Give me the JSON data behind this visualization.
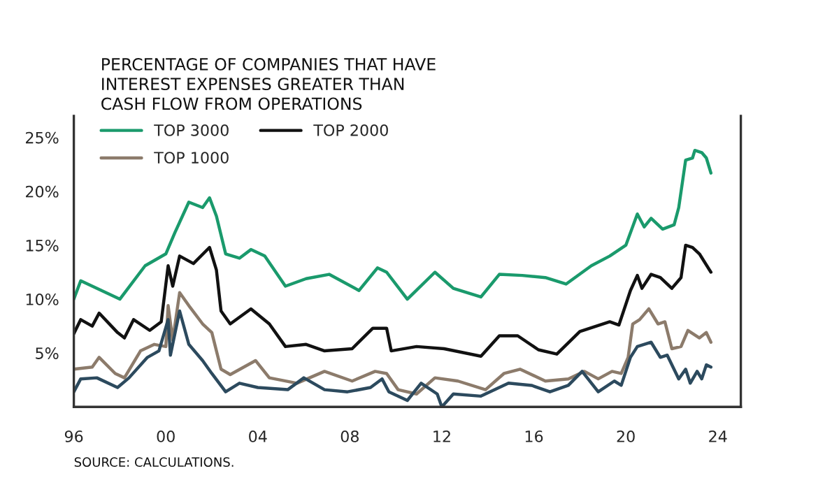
{
  "chart_data": {
    "type": "line",
    "title": "PERCENTAGE OF COMPANIES THAT HAVE\nINTEREST EXPENSES GREATER THAN\nCASH FLOW FROM OPERATIONS",
    "annotations": [
      "SOURCE: CALCULATIONS."
    ],
    "xlim": [
      1996,
      2025
    ],
    "xticks": [
      {
        "value": 1996,
        "label": "96"
      },
      {
        "value": 2000,
        "label": "00"
      },
      {
        "value": 2004,
        "label": "04"
      },
      {
        "value": 2008,
        "label": "08"
      },
      {
        "value": 2012,
        "label": "12"
      },
      {
        "value": 2016,
        "label": "16"
      },
      {
        "value": 2020,
        "label": "20"
      },
      {
        "value": 2024,
        "label": "24"
      }
    ],
    "ylim": [
      0,
      27
    ],
    "yticks": [
      {
        "value": 5,
        "label": "5%"
      },
      {
        "value": 10,
        "label": "10%"
      },
      {
        "value": 15,
        "label": "15%"
      },
      {
        "value": 20,
        "label": "20%"
      },
      {
        "value": 25,
        "label": "25%"
      }
    ],
    "grid": false,
    "legend": "top left",
    "marker": "none",
    "line_style": "solid",
    "series": [
      {
        "name": "TOP 3000",
        "color": "#1a9a6c",
        "x": [
          1996.0,
          1996.3,
          1998.0,
          1999.1,
          2000.0,
          2000.4,
          2001.0,
          2001.6,
          2001.9,
          2002.2,
          2002.6,
          2003.2,
          2003.7,
          2004.3,
          2005.2,
          2006.1,
          2007.1,
          2008.4,
          2009.2,
          2009.6,
          2010.5,
          2011.7,
          2012.5,
          2013.7,
          2014.5,
          2015.5,
          2016.5,
          2017.4,
          2018.5,
          2019.3,
          2020.0,
          2020.5,
          2020.8,
          2021.1,
          2021.6,
          2022.1,
          2022.3,
          2022.6,
          2022.9,
          2023.0,
          2023.3,
          2023.5,
          2023.7
        ],
        "values": [
          10.0,
          11.7,
          10.0,
          13.1,
          14.2,
          16.2,
          19.0,
          18.5,
          19.4,
          17.7,
          14.2,
          13.8,
          14.6,
          14.0,
          11.2,
          11.9,
          12.3,
          10.8,
          12.9,
          12.5,
          10.0,
          12.5,
          11.0,
          10.2,
          12.3,
          12.2,
          12.0,
          11.4,
          13.1,
          14.0,
          15.0,
          17.9,
          16.7,
          17.5,
          16.5,
          16.9,
          18.5,
          22.9,
          23.1,
          23.8,
          23.6,
          23.1,
          21.7
        ]
      },
      {
        "name": "TOP 2000",
        "color": "#111111",
        "x": [
          1996.0,
          1996.3,
          1996.8,
          1997.1,
          1997.9,
          1998.2,
          1998.6,
          1999.3,
          1999.8,
          2000.1,
          2000.3,
          2000.6,
          2001.2,
          2001.9,
          2002.2,
          2002.4,
          2002.8,
          2003.7,
          2004.5,
          2005.2,
          2006.1,
          2006.9,
          2008.1,
          2009.0,
          2009.6,
          2009.8,
          2010.9,
          2012.1,
          2013.7,
          2014.5,
          2015.3,
          2016.2,
          2017.0,
          2018.0,
          2019.3,
          2019.7,
          2020.2,
          2020.5,
          2020.7,
          2021.1,
          2021.5,
          2022.0,
          2022.4,
          2022.6,
          2022.9,
          2023.2,
          2023.7
        ],
        "values": [
          6.8,
          8.1,
          7.5,
          8.7,
          6.9,
          6.4,
          8.1,
          7.1,
          7.9,
          13.1,
          11.2,
          14.0,
          13.3,
          14.8,
          12.7,
          8.9,
          7.7,
          9.1,
          7.7,
          5.6,
          5.8,
          5.2,
          5.4,
          7.3,
          7.3,
          5.2,
          5.6,
          5.4,
          4.7,
          6.6,
          6.6,
          5.3,
          4.9,
          7.0,
          7.9,
          7.6,
          10.8,
          12.2,
          11.0,
          12.3,
          12.0,
          11.0,
          12.0,
          15.0,
          14.8,
          14.2,
          12.5
        ]
      },
      {
        "name": "TOP 1000",
        "color": "#8c7b6b",
        "x": [
          1996.0,
          1996.8,
          1997.1,
          1997.8,
          1998.2,
          1998.9,
          1999.5,
          2000.0,
          2000.1,
          2000.3,
          2000.6,
          2001.0,
          2001.6,
          2002.0,
          2002.4,
          2002.8,
          2003.9,
          2004.5,
          2005.7,
          2006.9,
          2008.1,
          2009.1,
          2009.6,
          2010.1,
          2010.9,
          2011.7,
          2012.7,
          2013.9,
          2014.7,
          2015.4,
          2016.5,
          2017.5,
          2018.2,
          2018.8,
          2019.4,
          2019.8,
          2020.1,
          2020.3,
          2020.6,
          2021.0,
          2021.4,
          2021.7,
          2022.0,
          2022.4,
          2022.7,
          2023.2,
          2023.5,
          2023.7
        ],
        "values": [
          3.5,
          3.7,
          4.6,
          3.1,
          2.7,
          5.2,
          5.8,
          5.6,
          9.4,
          6.2,
          10.6,
          9.4,
          7.7,
          6.9,
          3.5,
          3.0,
          4.3,
          2.7,
          2.2,
          3.3,
          2.4,
          3.3,
          3.1,
          1.6,
          1.2,
          2.7,
          2.4,
          1.6,
          3.1,
          3.5,
          2.4,
          2.6,
          3.3,
          2.6,
          3.3,
          3.1,
          4.6,
          7.7,
          8.1,
          9.1,
          7.7,
          7.9,
          5.4,
          5.6,
          7.1,
          6.4,
          6.9,
          6.0
        ]
      },
      {
        "color": "#2c4a5e",
        "x": [
          1996.0,
          1996.3,
          1997.0,
          1997.9,
          1998.4,
          1999.2,
          1999.7,
          2000.1,
          2000.2,
          2000.6,
          2001.0,
          2001.6,
          2002.0,
          2002.6,
          2003.2,
          2004.0,
          2005.3,
          2006.0,
          2006.9,
          2007.9,
          2008.9,
          2009.4,
          2009.7,
          2010.5,
          2011.1,
          2011.8,
          2012.0,
          2012.5,
          2013.7,
          2014.9,
          2015.9,
          2016.7,
          2017.5,
          2018.1,
          2018.8,
          2019.5,
          2019.8,
          2020.2,
          2020.5,
          2021.1,
          2021.5,
          2021.8,
          2022.3,
          2022.6,
          2022.8,
          2023.1,
          2023.3,
          2023.5,
          2023.7
        ],
        "values": [
          1.4,
          2.6,
          2.7,
          1.8,
          2.7,
          4.6,
          5.2,
          8.1,
          4.8,
          8.9,
          5.8,
          4.3,
          3.1,
          1.4,
          2.2,
          1.8,
          1.6,
          2.7,
          1.6,
          1.4,
          1.8,
          2.6,
          1.4,
          0.6,
          2.2,
          1.2,
          0.0,
          1.2,
          1.0,
          2.2,
          2.0,
          1.4,
          2.0,
          3.3,
          1.4,
          2.4,
          2.0,
          4.6,
          5.6,
          6.0,
          4.6,
          4.8,
          2.6,
          3.5,
          2.2,
          3.3,
          2.6,
          3.9,
          3.7
        ]
      }
    ]
  }
}
